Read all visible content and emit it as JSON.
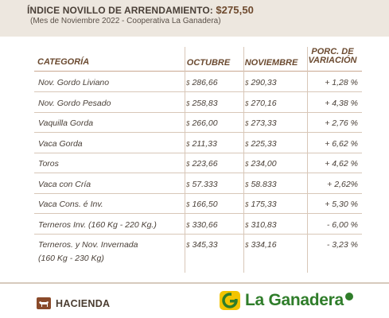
{
  "header": {
    "title_prefix": "ÍNDICE NOVILLO DE ARRENDAMIENTO: ",
    "title_value": "$275,50",
    "subtitle": "(Mes de Noviembre 2022 - Cooperativa La Ganadera)"
  },
  "table": {
    "columns": {
      "category": "CATEGORÍA",
      "october": "OCTUBRE",
      "november": "NOVIEMBRE",
      "pct_line1": "PORC. DE",
      "pct_line2": "VARIACIÓN"
    },
    "currency": "$",
    "rows": [
      {
        "category": "Nov. Gordo Liviano",
        "october": "286,66",
        "november": "290,33",
        "pct": "+ 1,28 %"
      },
      {
        "category": "Nov. Gordo Pesado",
        "october": "258,83",
        "november": "270,16",
        "pct": "+ 4,38 %"
      },
      {
        "category": "Vaquilla Gorda",
        "october": "266,00",
        "november": "273,33",
        "pct": "+ 2,76 %"
      },
      {
        "category": "Vaca Gorda",
        "october": "211,33",
        "november": "225,33",
        "pct": "+ 6,62 %"
      },
      {
        "category": "Toros",
        "october": "223,66",
        "november": "234,00",
        "pct": "+ 4,62 %"
      },
      {
        "category": "Vaca con Cría",
        "october": "57.333",
        "november": "58.833",
        "pct": "+ 2,62%"
      },
      {
        "category": "Vaca Cons. é Inv.",
        "october": "166,50",
        "november": "175,33",
        "pct": "+ 5,30 %"
      },
      {
        "category": "Terneros Inv. (160 Kg - 220 Kg.)",
        "october": "330,66",
        "november": "310,83",
        "pct": "- 6,00 %"
      },
      {
        "category": "Terneros. y Nov. Invernada",
        "category_line2": "(160 Kg  - 230 Kg)",
        "october": "345,33",
        "november": "334,16",
        "pct": "- 3,23 %"
      }
    ]
  },
  "footer": {
    "section_label": "HACIENDA",
    "brand_name": "La Ganadera",
    "brand_color": "#2f7d2a",
    "badge_color": "#8a4a2a",
    "logo_color": "#f3c400",
    "icons": [
      "cow-icon",
      "la-ganadera-g-logo-icon"
    ]
  }
}
